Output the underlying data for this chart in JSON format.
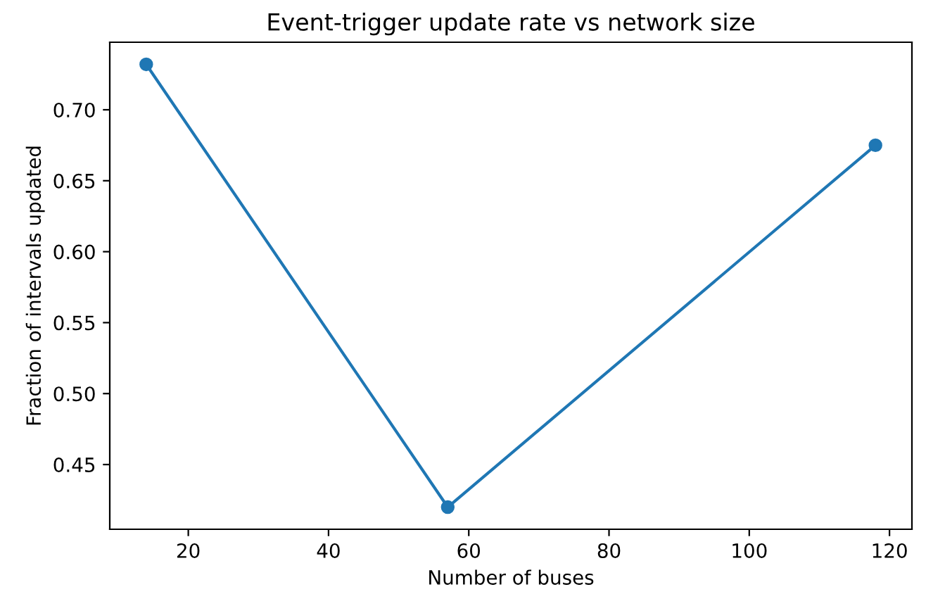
{
  "chart_data": {
    "type": "line",
    "title": "Event-trigger update rate vs network size",
    "xlabel": "Number of buses",
    "ylabel": "Fraction of intervals updated",
    "x": [
      14,
      57,
      118
    ],
    "series": [
      {
        "color": "#1f77b4",
        "values": [
          0.732,
          0.42,
          0.675
        ]
      }
    ],
    "xlim": [
      8.8,
      123.2
    ],
    "xticks": [
      20,
      40,
      60,
      80,
      100,
      120
    ],
    "ylim": [
      0.4044,
      0.7476
    ],
    "yticks": [
      {
        "value": 0.45,
        "label": "0.45"
      },
      {
        "value": 0.5,
        "label": "0.50"
      },
      {
        "value": 0.55,
        "label": "0.55"
      },
      {
        "value": 0.6,
        "label": "0.60"
      },
      {
        "value": 0.65,
        "label": "0.65"
      },
      {
        "value": 0.7,
        "label": "0.70"
      }
    ],
    "marker": "circle",
    "line_style": "solid",
    "grid": false,
    "legend": false
  }
}
